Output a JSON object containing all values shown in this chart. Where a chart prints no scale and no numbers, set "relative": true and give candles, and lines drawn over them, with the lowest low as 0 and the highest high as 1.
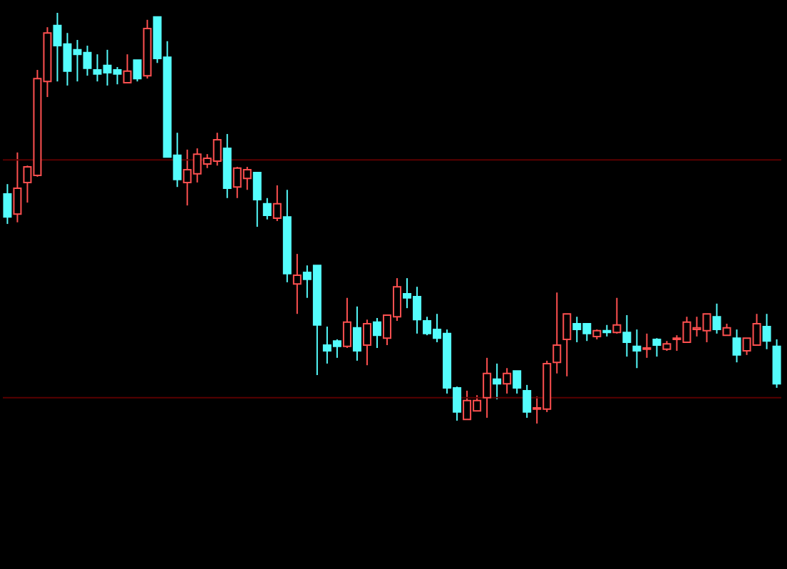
{
  "chart_data": {
    "type": "candlestick",
    "relative": true,
    "categories": [
      null,
      null,
      null,
      null,
      null,
      null,
      null,
      null,
      null,
      null,
      null,
      null,
      null,
      null,
      null,
      null,
      null,
      null,
      null,
      null,
      null,
      null,
      null,
      null,
      null,
      null,
      null,
      null,
      null,
      null,
      null,
      null,
      null,
      null,
      null,
      null,
      null,
      null,
      null,
      null,
      null,
      null,
      null,
      null,
      null,
      null,
      null,
      null,
      null,
      null,
      null,
      null,
      null,
      null,
      null,
      null,
      null,
      null,
      null,
      null,
      null,
      null,
      null,
      null,
      null,
      null,
      null,
      null,
      null,
      null,
      null,
      null,
      null,
      null,
      null,
      null,
      null,
      null
    ],
    "ohlc": [
      [
        0.559,
        0.583,
        0.486,
        0.503
      ],
      [
        0.51,
        0.66,
        0.49,
        0.573
      ],
      [
        0.587,
        0.628,
        0.538,
        0.625
      ],
      [
        0.604,
        0.861,
        0.601,
        0.84
      ],
      [
        0.833,
        0.965,
        0.795,
        0.951
      ],
      [
        0.969,
        1,
        0.833,
        0.92
      ],
      [
        0.924,
        0.951,
        0.823,
        0.858
      ],
      [
        0.91,
        0.934,
        0.833,
        0.899
      ],
      [
        0.903,
        0.92,
        0.847,
        0.865
      ],
      [
        0.861,
        0.899,
        0.833,
        0.851
      ],
      [
        0.872,
        0.91,
        0.823,
        0.854
      ],
      [
        0.861,
        0.868,
        0.826,
        0.851
      ],
      [
        0.83,
        0.899,
        0.83,
        0.858
      ],
      [
        0.885,
        0.885,
        0.833,
        0.84
      ],
      [
        0.847,
        0.983,
        0.84,
        0.962
      ],
      [
        0.99,
        0.99,
        0.878,
        0.889
      ],
      [
        0.892,
        0.931,
        0.649,
        0.649
      ],
      [
        0.653,
        0.708,
        0.576,
        0.594
      ],
      [
        0.587,
        0.667,
        0.531,
        0.618
      ],
      [
        0.608,
        0.67,
        0.587,
        0.656
      ],
      [
        0.632,
        0.656,
        0.622,
        0.646
      ],
      [
        0.639,
        0.708,
        0.628,
        0.691
      ],
      [
        0.67,
        0.705,
        0.549,
        0.573
      ],
      [
        0.576,
        0.625,
        0.549,
        0.622
      ],
      [
        0.597,
        0.625,
        0.569,
        0.618
      ],
      [
        0.611,
        0.611,
        0.479,
        0.545
      ],
      [
        0.535,
        0.549,
        0.497,
        0.507
      ],
      [
        0.5,
        0.58,
        0.493,
        0.535
      ],
      [
        0.503,
        0.569,
        0.344,
        0.365
      ],
      [
        0.34,
        0.413,
        0.267,
        0.361
      ],
      [
        0.368,
        0.385,
        0.306,
        0.351
      ],
      [
        0.385,
        0.385,
        0.118,
        0.24
      ],
      [
        0.191,
        0.236,
        0.146,
        0.177
      ],
      [
        0.201,
        0.205,
        0.16,
        0.188
      ],
      [
        0.188,
        0.306,
        0.184,
        0.247
      ],
      [
        0.233,
        0.285,
        0.153,
        0.177
      ],
      [
        0.191,
        0.253,
        0.142,
        0.243
      ],
      [
        0.247,
        0.257,
        0.184,
        0.215
      ],
      [
        0.208,
        0.264,
        0.191,
        0.264
      ],
      [
        0.26,
        0.354,
        0.25,
        0.333
      ],
      [
        0.316,
        0.354,
        0.281,
        0.306
      ],
      [
        0.309,
        0.333,
        0.219,
        0.253
      ],
      [
        0.25,
        0.26,
        0.215,
        0.219
      ],
      [
        0.229,
        0.267,
        0.198,
        0.208
      ],
      [
        0.219,
        0.229,
        0.073,
        0.087
      ],
      [
        0.087,
        0.09,
        0.007,
        0.028
      ],
      [
        0.01,
        0.08,
        0.01,
        0.056
      ],
      [
        0.031,
        0.069,
        0.031,
        0.056
      ],
      [
        0.063,
        0.16,
        0.014,
        0.122
      ],
      [
        0.108,
        0.146,
        0.059,
        0.097
      ],
      [
        0.097,
        0.135,
        0.073,
        0.122
      ],
      [
        0.128,
        0.128,
        0.073,
        0.087
      ],
      [
        0.08,
        0.094,
        0.014,
        0.028
      ],
      [
        0.035,
        0.066,
        0,
        0.038
      ],
      [
        0.035,
        0.153,
        0.028,
        0.146
      ],
      [
        0.149,
        0.319,
        0.122,
        0.191
      ],
      [
        0.205,
        0.267,
        0.115,
        0.267
      ],
      [
        0.243,
        0.26,
        0.198,
        0.229
      ],
      [
        0.243,
        0.243,
        0.201,
        0.219
      ],
      [
        0.212,
        0.229,
        0.205,
        0.226
      ],
      [
        0.226,
        0.24,
        0.212,
        0.222
      ],
      [
        0.222,
        0.306,
        0.219,
        0.24
      ],
      [
        0.222,
        0.264,
        0.163,
        0.198
      ],
      [
        0.188,
        0.229,
        0.135,
        0.177
      ],
      [
        0.181,
        0.219,
        0.16,
        0.184
      ],
      [
        0.205,
        0.208,
        0.163,
        0.191
      ],
      [
        0.181,
        0.201,
        0.177,
        0.194
      ],
      [
        0.205,
        0.215,
        0.177,
        0.208
      ],
      [
        0.198,
        0.26,
        0.198,
        0.247
      ],
      [
        0.229,
        0.26,
        0.212,
        0.233
      ],
      [
        0.226,
        0.267,
        0.198,
        0.267
      ],
      [
        0.26,
        0.292,
        0.219,
        0.229
      ],
      [
        0.215,
        0.243,
        0.215,
        0.233
      ],
      [
        0.208,
        0.229,
        0.149,
        0.167
      ],
      [
        0.177,
        0.208,
        0.167,
        0.208
      ],
      [
        0.191,
        0.267,
        0.191,
        0.243
      ],
      [
        0.236,
        0.267,
        0.181,
        0.201
      ],
      [
        0.188,
        0.205,
        0.087,
        0.097
      ]
    ],
    "colors": [
      "#54fcfc",
      "#ff5050",
      "#ff5050",
      "#ff5050",
      "#ff5050",
      "#54fcfc",
      "#54fcfc",
      "#54fcfc",
      "#54fcfc",
      "#54fcfc",
      "#54fcfc",
      "#54fcfc",
      "#ff5050",
      "#54fcfc",
      "#ff5050",
      "#54fcfc",
      "#54fcfc",
      "#54fcfc",
      "#ff5050",
      "#ff5050",
      "#ff5050",
      "#ff5050",
      "#54fcfc",
      "#ff5050",
      "#ff5050",
      "#54fcfc",
      "#54fcfc",
      "#ff5050",
      "#54fcfc",
      "#ff5050",
      "#54fcfc",
      "#54fcfc",
      "#54fcfc",
      "#54fcfc",
      "#ff5050",
      "#54fcfc",
      "#ff5050",
      "#54fcfc",
      "#ff5050",
      "#ff5050",
      "#54fcfc",
      "#54fcfc",
      "#54fcfc",
      "#54fcfc",
      "#54fcfc",
      "#54fcfc",
      "#ff5050",
      "#ff5050",
      "#ff5050",
      "#54fcfc",
      "#ff5050",
      "#54fcfc",
      "#54fcfc",
      "#ff5050",
      "#ff5050",
      "#ff5050",
      "#ff5050",
      "#54fcfc",
      "#54fcfc",
      "#ff5050",
      "#54fcfc",
      "#ff5050",
      "#54fcfc",
      "#54fcfc",
      "#ff5050",
      "#54fcfc",
      "#ff5050",
      "#ff5050",
      "#ff5050",
      "#ff5050",
      "#ff5050",
      "#54fcfc",
      "#ff5050",
      "#54fcfc",
      "#ff5050",
      "#ff5050",
      "#54fcfc",
      "#54fcfc"
    ],
    "ref_lines": [
      {
        "axis": "y",
        "value": 0.642,
        "color": "#5a0000"
      },
      {
        "axis": "y",
        "value": 0.063,
        "color": "#5a0000"
      }
    ]
  }
}
